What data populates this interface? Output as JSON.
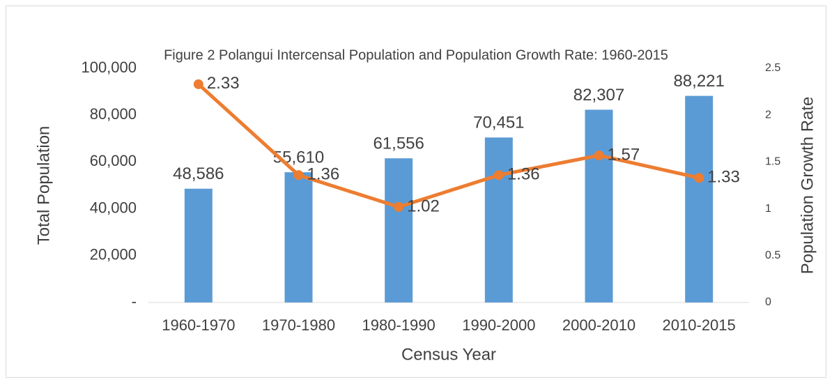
{
  "chart_data": {
    "type": "bar",
    "title": "Figure 2 Polangui Intercensal Population and Population Growth Rate: 1960-2015",
    "categories": [
      "1960-1970",
      "1970-1980",
      "1980-1990",
      "1990-2000",
      "2000-2010",
      "2010-2015"
    ],
    "series": [
      {
        "type": "bar",
        "color": "#5b9bd5",
        "values": [
          48586,
          55610,
          61556,
          70451,
          82307,
          88221
        ],
        "value_labels": [
          "48,586",
          "55,610",
          "61,556",
          "70,451",
          "82,307",
          "88,221"
        ]
      },
      {
        "type": "line",
        "axis": "y2",
        "color": "#ed7d31",
        "values": [
          2.33,
          1.36,
          1.02,
          1.36,
          1.57,
          1.33
        ]
      }
    ],
    "xlabel": "Census Year",
    "ylabel": "Total Population",
    "y2label": "Population Growth Rate",
    "ylim": [
      0,
      100000
    ],
    "yticks": [
      {
        "value": 0,
        "label": "-"
      },
      {
        "value": 20000,
        "label": "20,000"
      },
      {
        "value": 40000,
        "label": "40,000"
      },
      {
        "value": 60000,
        "label": "60,000"
      },
      {
        "value": 80000,
        "label": "80,000"
      },
      {
        "value": 100000,
        "label": "100,000"
      }
    ],
    "y2lim": [
      0,
      2.5
    ],
    "y2ticks": [
      0,
      0.5,
      1,
      1.5,
      2,
      2.5
    ],
    "grid": false
  }
}
